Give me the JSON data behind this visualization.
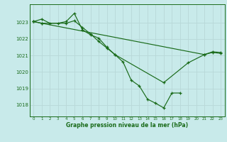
{
  "title": "Graphe pression niveau de la mer (hPa)",
  "background_color": "#c8eaea",
  "grid_color": "#b8d8d8",
  "line_color": "#1a6b1a",
  "xlim": [
    -0.5,
    23.5
  ],
  "ylim": [
    1017.3,
    1024.1
  ],
  "yticks": [
    1018,
    1019,
    1020,
    1021,
    1022,
    1023
  ],
  "xticks": [
    0,
    1,
    2,
    3,
    4,
    5,
    6,
    7,
    8,
    9,
    10,
    11,
    12,
    13,
    14,
    15,
    16,
    17,
    18,
    19,
    20,
    21,
    22,
    23
  ],
  "series1_x": [
    0,
    1,
    2,
    3,
    4,
    5,
    6,
    7,
    8,
    9,
    10,
    11,
    12,
    13,
    14,
    15,
    16,
    17,
    18
  ],
  "series1_y": [
    1023.05,
    1023.2,
    1022.95,
    1022.95,
    1023.05,
    1023.55,
    1022.55,
    1022.25,
    1022.05,
    1021.5,
    1021.05,
    1020.6,
    1019.5,
    1019.15,
    1018.35,
    1018.1,
    1017.82,
    1018.72,
    1018.72
  ],
  "series2_x": [
    0,
    1,
    4,
    5,
    6,
    7,
    8,
    9,
    10,
    16,
    19,
    21,
    22,
    23
  ],
  "series2_y": [
    1023.05,
    1022.95,
    1022.95,
    1023.1,
    1022.7,
    1022.3,
    1021.85,
    1021.45,
    1021.05,
    1019.35,
    1020.55,
    1021.05,
    1021.22,
    1021.18
  ],
  "series3_x": [
    0,
    1,
    21,
    22,
    23
  ],
  "series3_y": [
    1023.05,
    1022.95,
    1021.05,
    1021.18,
    1021.12
  ]
}
